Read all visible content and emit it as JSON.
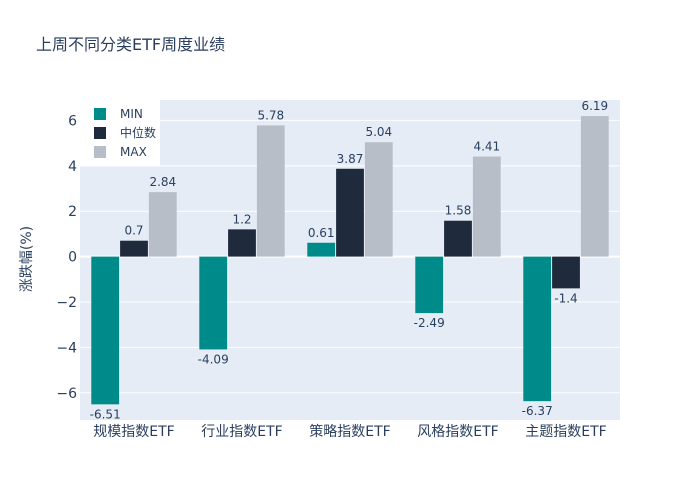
{
  "chart_data": {
    "type": "bar",
    "title": "上周不同分类ETF周度业绩",
    "xlabel": "",
    "ylabel": "涨跌幅(%)",
    "categories": [
      "规模指数ETF",
      "行业指数ETF",
      "策略指数ETF",
      "风格指数ETF",
      "主题指数ETF"
    ],
    "series": [
      {
        "name": "MIN",
        "color": "#008b8b",
        "values": [
          -6.51,
          -4.09,
          0.61,
          -2.49,
          -6.37
        ],
        "labels": [
          "-6.51",
          "-4.09",
          "0.61",
          "-2.49",
          "-6.37"
        ]
      },
      {
        "name": "中位数",
        "color": "#1f2a3d",
        "values": [
          0.7,
          1.2,
          3.87,
          1.58,
          -1.4
        ],
        "labels": [
          "0.7",
          "1.2",
          "3.87",
          "1.58",
          "-1.4"
        ]
      },
      {
        "name": "MAX",
        "color": "#b7bec7",
        "values": [
          2.84,
          5.78,
          5.04,
          4.41,
          6.19
        ],
        "labels": [
          "2.84",
          "5.78",
          "5.04",
          "4.41",
          "6.19"
        ]
      }
    ],
    "ylim": [
      -7.2,
      6.9
    ],
    "yticks": [
      -6,
      -4,
      -2,
      0,
      2,
      4,
      6
    ],
    "ytick_labels": [
      "−6",
      "−4",
      "−2",
      "0",
      "2",
      "4",
      "6"
    ],
    "grid": true,
    "plot_bgcolor": "#e5ecf6",
    "legend_position": "top-left"
  }
}
